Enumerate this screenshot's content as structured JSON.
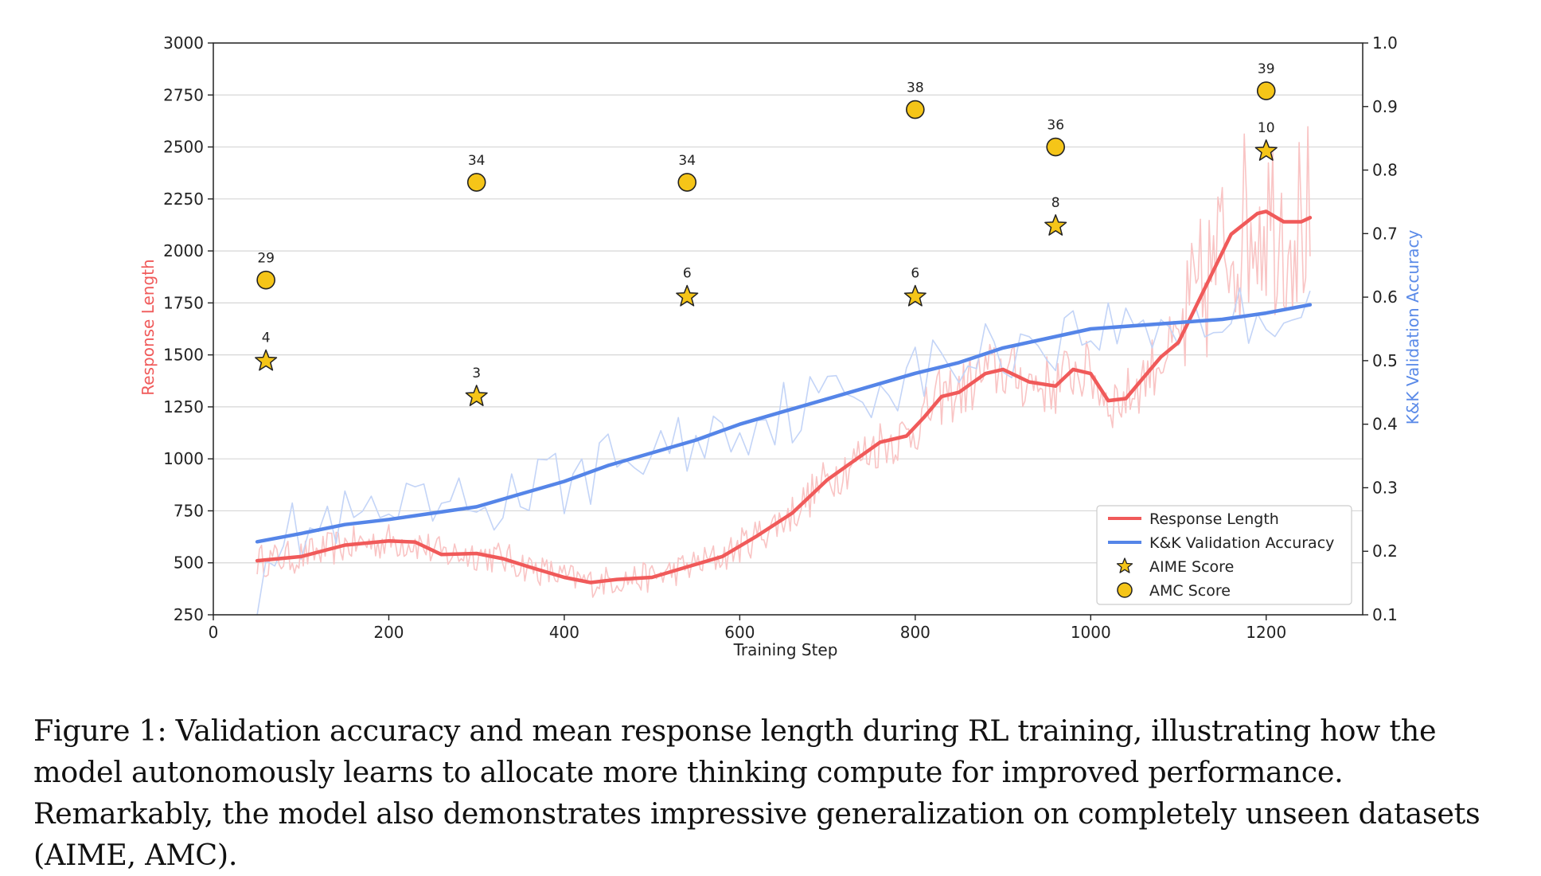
{
  "chart_data": {
    "type": "line",
    "xlabel": "Training Step",
    "ylabel_left": "Response Length",
    "ylabel_right": "K&K Validation Accuracy",
    "xlim": [
      0,
      1310
    ],
    "ylim_left": [
      250,
      3000
    ],
    "ylim_right": [
      0.1,
      1.0
    ],
    "xticks": [
      0,
      200,
      400,
      600,
      800,
      1000,
      1200
    ],
    "yticks_left": [
      250,
      500,
      750,
      1000,
      1250,
      1500,
      1750,
      2000,
      2250,
      2500,
      2750,
      3000
    ],
    "yticks_right": [
      "0.1",
      "0.2",
      "0.3",
      "0.4",
      "0.5",
      "0.6",
      "0.7",
      "0.8",
      "0.9",
      "1.0"
    ],
    "grid": "horizontal",
    "legend_position": "bottom-right",
    "colors": {
      "response_length": "#f05a5a",
      "response_raw": "#f9c4c4",
      "validation": "#5585e8",
      "validation_raw": "#c3d4f7",
      "marker_fill": "#f5c518",
      "marker_edge": "#222222",
      "ylabel_left": "#f05a5a",
      "ylabel_right": "#5a8ae8"
    },
    "series": [
      {
        "name": "Response Length",
        "axis": "left",
        "x": [
          50,
          100,
          150,
          200,
          230,
          260,
          300,
          330,
          360,
          400,
          430,
          460,
          500,
          540,
          580,
          620,
          660,
          700,
          760,
          790,
          810,
          830,
          850,
          880,
          900,
          930,
          960,
          980,
          1000,
          1020,
          1040,
          1080,
          1100,
          1130,
          1160,
          1190,
          1200,
          1220,
          1240,
          1250
        ],
        "values": [
          510,
          530,
          585,
          605,
          600,
          540,
          545,
          520,
          480,
          430,
          405,
          420,
          430,
          480,
          530,
          630,
          740,
          900,
          1080,
          1110,
          1200,
          1300,
          1320,
          1410,
          1430,
          1370,
          1350,
          1430,
          1410,
          1280,
          1290,
          1490,
          1560,
          1820,
          2080,
          2180,
          2190,
          2140,
          2140,
          2160
        ]
      },
      {
        "name": "K&K Validation Accuracy",
        "axis": "right",
        "x": [
          50,
          100,
          150,
          200,
          250,
          300,
          350,
          400,
          450,
          500,
          550,
          600,
          650,
          700,
          750,
          800,
          850,
          900,
          950,
          1000,
          1050,
          1100,
          1150,
          1200,
          1250
        ],
        "values": [
          0.215,
          0.228,
          0.242,
          0.25,
          0.26,
          0.27,
          0.29,
          0.31,
          0.335,
          0.355,
          0.375,
          0.4,
          0.42,
          0.44,
          0.46,
          0.48,
          0.497,
          0.52,
          0.535,
          0.55,
          0.555,
          0.56,
          0.565,
          0.575,
          0.588
        ]
      },
      {
        "name": "AIME Score",
        "axis": "left",
        "marker": "star",
        "x": [
          60,
          300,
          540,
          800,
          960,
          1200
        ],
        "values": [
          1470,
          1300,
          1780,
          1780,
          2120,
          2480
        ],
        "labels": [
          "4",
          "3",
          "6",
          "6",
          "8",
          "10"
        ]
      },
      {
        "name": "AMC Score",
        "axis": "left",
        "marker": "circle",
        "x": [
          60,
          300,
          540,
          800,
          960,
          1200
        ],
        "values": [
          1860,
          2330,
          2330,
          2680,
          2500,
          2770
        ],
        "labels": [
          "29",
          "34",
          "34",
          "38",
          "36",
          "39"
        ]
      }
    ]
  },
  "caption": "Figure 1: Validation accuracy and mean response length during RL training, illustrating how the model autonomously learns to allocate more thinking compute for improved performance. Remarkably, the model also demonstrates impressive generalization on completely unseen datasets (AIME, AMC)."
}
